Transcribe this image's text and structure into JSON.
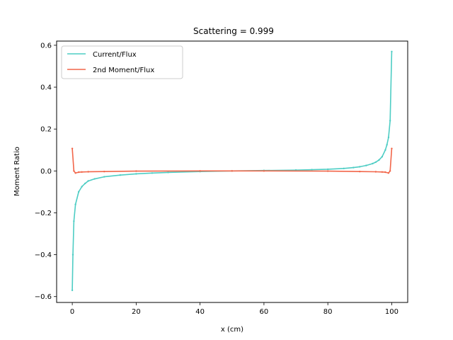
{
  "chart_data": {
    "type": "line",
    "title": "Scattering = 0.999",
    "xlabel": "x (cm)",
    "ylabel": "Moment Ratio",
    "xlim": [
      -4.9,
      105
    ],
    "ylim": [
      -0.628,
      0.62
    ],
    "xticks": [
      0,
      20,
      40,
      60,
      80,
      100
    ],
    "yticks": [
      -0.6,
      -0.4,
      -0.2,
      0.0,
      0.2,
      0.4,
      0.6
    ],
    "xtick_labels": [
      "0",
      "20",
      "40",
      "60",
      "80",
      "100"
    ],
    "ytick_labels": [
      "−0.6",
      "−0.4",
      "−0.2",
      "0.0",
      "0.2",
      "0.4",
      "0.6"
    ],
    "legend_position": "top-left",
    "grid": false,
    "series": [
      {
        "name": "Current/Flux",
        "color": "#4ecdc4",
        "points": [
          [
            0,
            -0.57
          ],
          [
            0.2,
            -0.4
          ],
          [
            0.5,
            -0.24
          ],
          [
            1,
            -0.16
          ],
          [
            2,
            -0.1
          ],
          [
            3,
            -0.075
          ],
          [
            4,
            -0.06
          ],
          [
            5,
            -0.048
          ],
          [
            7,
            -0.038
          ],
          [
            10,
            -0.028
          ],
          [
            15,
            -0.02
          ],
          [
            20,
            -0.014
          ],
          [
            25,
            -0.01
          ],
          [
            30,
            -0.007
          ],
          [
            40,
            -0.003
          ],
          [
            50,
            0.0
          ],
          [
            60,
            0.002
          ],
          [
            70,
            0.004
          ],
          [
            75,
            0.006
          ],
          [
            80,
            0.008
          ],
          [
            85,
            0.012
          ],
          [
            88,
            0.016
          ],
          [
            90,
            0.02
          ],
          [
            92,
            0.026
          ],
          [
            94,
            0.035
          ],
          [
            95,
            0.042
          ],
          [
            96,
            0.052
          ],
          [
            97,
            0.068
          ],
          [
            98,
            0.1
          ],
          [
            98.5,
            0.125
          ],
          [
            99,
            0.16
          ],
          [
            99.5,
            0.24
          ],
          [
            100,
            0.57
          ]
        ]
      },
      {
        "name": "2nd Moment/Flux",
        "color": "#f2664a",
        "points": [
          [
            0,
            0.107
          ],
          [
            0.5,
            0.0
          ],
          [
            1,
            -0.01
          ],
          [
            2,
            -0.006
          ],
          [
            3,
            -0.005
          ],
          [
            5,
            -0.004
          ],
          [
            10,
            -0.003
          ],
          [
            20,
            -0.001
          ],
          [
            40,
            0.0
          ],
          [
            50,
            0.0
          ],
          [
            60,
            0.0
          ],
          [
            80,
            -0.001
          ],
          [
            90,
            -0.003
          ],
          [
            95,
            -0.004
          ],
          [
            97,
            -0.005
          ],
          [
            98,
            -0.006
          ],
          [
            99,
            -0.01
          ],
          [
            99.5,
            0.0
          ],
          [
            100,
            0.107
          ]
        ]
      }
    ]
  }
}
